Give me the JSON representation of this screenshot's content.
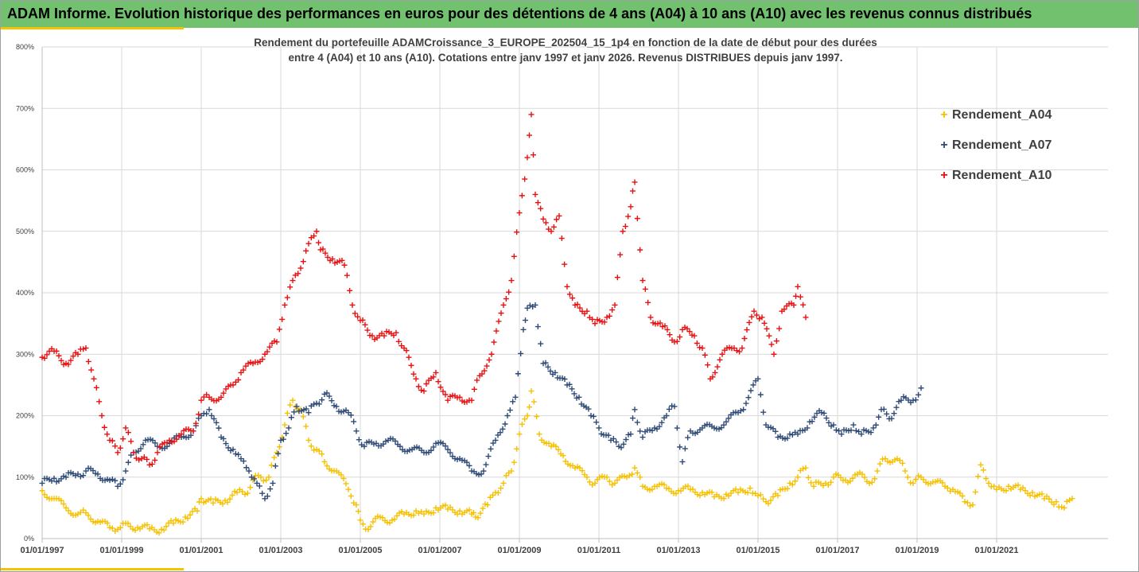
{
  "banner": {
    "title": "ADAM Informe. Evolution historique des performances en euros pour des détentions de 4 ans (A04) à 10 ans (A10) avec les revenus connus distribués"
  },
  "chart_data": {
    "type": "scatter",
    "title_line1": "Rendement du portefeuille ADAMCroissance_3_EUROPE_202504_15_1p4  en fonction de la date de début pour des durées",
    "title_line2": "entre 4 (A04) et 10 ans (A10). Cotations entre janv 1997 et janv 2026. Revenus DISTRIBUES depuis janv 1997.",
    "ylim": [
      0,
      800
    ],
    "xlim": [
      1997.0,
      2023.8
    ],
    "grid": true,
    "legend_position": "right",
    "y_ticks": [
      "0%",
      "100%",
      "200%",
      "300%",
      "400%",
      "500%",
      "600%",
      "700%",
      "800%"
    ],
    "x_ticks": [
      {
        "label": "01/01/1997",
        "year": 1997
      },
      {
        "label": "01/01/1999",
        "year": 1999
      },
      {
        "label": "01/01/2001",
        "year": 2001
      },
      {
        "label": "01/01/2003",
        "year": 2003
      },
      {
        "label": "01/01/2005",
        "year": 2005
      },
      {
        "label": "01/01/2007",
        "year": 2007
      },
      {
        "label": "01/01/2009",
        "year": 2009
      },
      {
        "label": "01/01/2011",
        "year": 2011
      },
      {
        "label": "01/01/2013",
        "year": 2013
      },
      {
        "label": "01/01/2015",
        "year": 2015
      },
      {
        "label": "01/01/2017",
        "year": 2017
      },
      {
        "label": "01/01/2019",
        "year": 2019
      },
      {
        "label": "01/01/2021",
        "year": 2021
      }
    ],
    "series": [
      {
        "name": "Rendement_A04",
        "color": "#f5c000",
        "points": [
          [
            1997.0,
            78
          ],
          [
            1997.3,
            65
          ],
          [
            1997.6,
            50
          ],
          [
            1997.9,
            40
          ],
          [
            1998.1,
            42
          ],
          [
            1998.4,
            28
          ],
          [
            1998.7,
            18
          ],
          [
            1998.9,
            15
          ],
          [
            1999.1,
            25
          ],
          [
            1999.4,
            18
          ],
          [
            1999.7,
            16
          ],
          [
            2000.0,
            15
          ],
          [
            2000.3,
            25
          ],
          [
            2000.6,
            35
          ],
          [
            2000.9,
            45
          ],
          [
            2001.0,
            65
          ],
          [
            2001.3,
            58
          ],
          [
            2001.6,
            62
          ],
          [
            2001.9,
            75
          ],
          [
            2002.1,
            72
          ],
          [
            2002.3,
            95
          ],
          [
            2002.5,
            100
          ],
          [
            2002.7,
            100
          ],
          [
            2002.9,
            140
          ],
          [
            2003.1,
            185
          ],
          [
            2003.3,
            225
          ],
          [
            2003.5,
            210
          ],
          [
            2003.7,
            160
          ],
          [
            2003.9,
            145
          ],
          [
            2004.1,
            125
          ],
          [
            2004.4,
            110
          ],
          [
            2004.7,
            80
          ],
          [
            2004.9,
            55
          ],
          [
            2005.0,
            30
          ],
          [
            2005.2,
            15
          ],
          [
            2005.5,
            35
          ],
          [
            2005.8,
            30
          ],
          [
            2006.1,
            40
          ],
          [
            2006.4,
            45
          ],
          [
            2006.6,
            40
          ],
          [
            2006.9,
            50
          ],
          [
            2007.2,
            48
          ],
          [
            2007.5,
            45
          ],
          [
            2007.8,
            40
          ],
          [
            2007.9,
            35
          ],
          [
            2008.2,
            55
          ],
          [
            2008.4,
            75
          ],
          [
            2008.6,
            90
          ],
          [
            2008.8,
            110
          ],
          [
            2009.0,
            170
          ],
          [
            2009.2,
            200
          ],
          [
            2009.3,
            240
          ],
          [
            2009.5,
            170
          ],
          [
            2009.8,
            150
          ],
          [
            2010.1,
            135
          ],
          [
            2010.4,
            115
          ],
          [
            2010.7,
            100
          ],
          [
            2010.9,
            90
          ],
          [
            2011.2,
            100
          ],
          [
            2011.4,
            90
          ],
          [
            2011.7,
            100
          ],
          [
            2011.9,
            115
          ],
          [
            2012.1,
            85
          ],
          [
            2012.4,
            85
          ],
          [
            2012.7,
            82
          ],
          [
            2013.0,
            78
          ],
          [
            2013.3,
            80
          ],
          [
            2013.6,
            75
          ],
          [
            2013.9,
            68
          ],
          [
            2014.2,
            72
          ],
          [
            2014.5,
            75
          ],
          [
            2014.8,
            82
          ],
          [
            2015.0,
            70
          ],
          [
            2015.2,
            60
          ],
          [
            2015.5,
            70
          ],
          [
            2015.8,
            90
          ],
          [
            2016.0,
            100
          ],
          [
            2016.2,
            115
          ],
          [
            2016.4,
            85
          ],
          [
            2016.7,
            90
          ],
          [
            2016.9,
            100
          ],
          [
            2017.2,
            95
          ],
          [
            2017.5,
            105
          ],
          [
            2017.8,
            90
          ],
          [
            2018.0,
            110
          ],
          [
            2018.2,
            130
          ],
          [
            2018.5,
            130
          ],
          [
            2018.7,
            110
          ],
          [
            2018.9,
            90
          ],
          [
            2019.1,
            100
          ],
          [
            2019.4,
            92
          ],
          [
            2019.7,
            85
          ],
          [
            2019.9,
            80
          ],
          [
            2020.2,
            60
          ],
          [
            2020.4,
            55
          ],
          [
            2020.6,
            120
          ],
          [
            2020.8,
            90
          ],
          [
            2021.0,
            80
          ],
          [
            2021.3,
            85
          ],
          [
            2021.6,
            80
          ],
          [
            2021.9,
            75
          ],
          [
            2022.2,
            65
          ],
          [
            2022.5,
            60
          ],
          [
            2022.7,
            50
          ],
          [
            2022.9,
            65
          ]
        ]
      },
      {
        "name": "Rendement_A07",
        "color": "#2e4a77",
        "points": [
          [
            1997.0,
            90
          ],
          [
            1997.3,
            98
          ],
          [
            1997.6,
            100
          ],
          [
            1997.9,
            105
          ],
          [
            1998.1,
            110
          ],
          [
            1998.4,
            105
          ],
          [
            1998.7,
            95
          ],
          [
            1998.9,
            85
          ],
          [
            1999.1,
            110
          ],
          [
            1999.3,
            140
          ],
          [
            1999.6,
            160
          ],
          [
            1999.9,
            150
          ],
          [
            2000.2,
            155
          ],
          [
            2000.5,
            165
          ],
          [
            2000.8,
            175
          ],
          [
            2001.0,
            200
          ],
          [
            2001.2,
            210
          ],
          [
            2001.5,
            165
          ],
          [
            2001.8,
            145
          ],
          [
            2002.0,
            130
          ],
          [
            2002.2,
            110
          ],
          [
            2002.4,
            90
          ],
          [
            2002.6,
            65
          ],
          [
            2002.8,
            90
          ],
          [
            2003.0,
            160
          ],
          [
            2003.2,
            180
          ],
          [
            2003.4,
            215
          ],
          [
            2003.7,
            205
          ],
          [
            2003.9,
            220
          ],
          [
            2004.1,
            235
          ],
          [
            2004.4,
            215
          ],
          [
            2004.7,
            205
          ],
          [
            2004.9,
            175
          ],
          [
            2005.1,
            150
          ],
          [
            2005.4,
            155
          ],
          [
            2005.7,
            160
          ],
          [
            2006.0,
            150
          ],
          [
            2006.3,
            145
          ],
          [
            2006.6,
            140
          ],
          [
            2006.9,
            155
          ],
          [
            2007.2,
            145
          ],
          [
            2007.5,
            130
          ],
          [
            2007.8,
            110
          ],
          [
            2008.1,
            110
          ],
          [
            2008.4,
            160
          ],
          [
            2008.7,
            200
          ],
          [
            2008.9,
            230
          ],
          [
            2009.1,
            340
          ],
          [
            2009.2,
            375
          ],
          [
            2009.4,
            380
          ],
          [
            2009.6,
            285
          ],
          [
            2009.9,
            270
          ],
          [
            2010.2,
            250
          ],
          [
            2010.5,
            230
          ],
          [
            2010.8,
            200
          ],
          [
            2011.0,
            180
          ],
          [
            2011.3,
            160
          ],
          [
            2011.5,
            150
          ],
          [
            2011.8,
            170
          ],
          [
            2011.9,
            210
          ],
          [
            2012.1,
            165
          ],
          [
            2012.4,
            180
          ],
          [
            2012.7,
            200
          ],
          [
            2012.9,
            215
          ],
          [
            2013.1,
            125
          ],
          [
            2013.3,
            175
          ],
          [
            2013.6,
            180
          ],
          [
            2013.9,
            180
          ],
          [
            2014.2,
            190
          ],
          [
            2014.5,
            205
          ],
          [
            2014.7,
            220
          ],
          [
            2015.0,
            260
          ],
          [
            2015.2,
            185
          ],
          [
            2015.5,
            165
          ],
          [
            2015.8,
            170
          ],
          [
            2016.0,
            170
          ],
          [
            2016.3,
            190
          ],
          [
            2016.6,
            205
          ],
          [
            2016.9,
            185
          ],
          [
            2017.1,
            170
          ],
          [
            2017.4,
            185
          ],
          [
            2017.6,
            170
          ],
          [
            2017.9,
            180
          ],
          [
            2018.1,
            210
          ],
          [
            2018.3,
            195
          ],
          [
            2018.6,
            225
          ],
          [
            2018.9,
            225
          ],
          [
            2019.1,
            245
          ]
        ]
      },
      {
        "name": "Rendement_A10",
        "color": "#e81010",
        "points": [
          [
            1997.0,
            295
          ],
          [
            1997.3,
            305
          ],
          [
            1997.6,
            285
          ],
          [
            1997.9,
            300
          ],
          [
            1998.1,
            310
          ],
          [
            1998.3,
            260
          ],
          [
            1998.5,
            200
          ],
          [
            1998.7,
            160
          ],
          [
            1998.9,
            140
          ],
          [
            1999.1,
            180
          ],
          [
            1999.3,
            140
          ],
          [
            1999.5,
            130
          ],
          [
            1999.7,
            120
          ],
          [
            1999.9,
            140
          ],
          [
            2000.2,
            160
          ],
          [
            2000.5,
            170
          ],
          [
            2000.8,
            175
          ],
          [
            2001.0,
            225
          ],
          [
            2001.2,
            230
          ],
          [
            2001.5,
            230
          ],
          [
            2001.8,
            250
          ],
          [
            2002.0,
            270
          ],
          [
            2002.3,
            285
          ],
          [
            2002.6,
            300
          ],
          [
            2002.9,
            320
          ],
          [
            2003.1,
            380
          ],
          [
            2003.3,
            420
          ],
          [
            2003.5,
            440
          ],
          [
            2003.7,
            480
          ],
          [
            2003.9,
            500
          ],
          [
            2004.0,
            470
          ],
          [
            2004.3,
            455
          ],
          [
            2004.6,
            445
          ],
          [
            2004.8,
            380
          ],
          [
            2005.0,
            355
          ],
          [
            2005.3,
            330
          ],
          [
            2005.6,
            330
          ],
          [
            2005.9,
            335
          ],
          [
            2006.1,
            310
          ],
          [
            2006.4,
            260
          ],
          [
            2006.6,
            240
          ],
          [
            2006.9,
            270
          ],
          [
            2007.2,
            225
          ],
          [
            2007.5,
            230
          ],
          [
            2007.8,
            225
          ],
          [
            2008.0,
            265
          ],
          [
            2008.3,
            300
          ],
          [
            2008.6,
            380
          ],
          [
            2008.8,
            420
          ],
          [
            2009.0,
            530
          ],
          [
            2009.2,
            620
          ],
          [
            2009.3,
            690
          ],
          [
            2009.4,
            560
          ],
          [
            2009.6,
            520
          ],
          [
            2009.8,
            500
          ],
          [
            2010.0,
            525
          ],
          [
            2010.2,
            410
          ],
          [
            2010.4,
            380
          ],
          [
            2010.7,
            370
          ],
          [
            2010.9,
            350
          ],
          [
            2011.2,
            360
          ],
          [
            2011.4,
            380
          ],
          [
            2011.6,
            500
          ],
          [
            2011.8,
            540
          ],
          [
            2011.9,
            580
          ],
          [
            2012.1,
            420
          ],
          [
            2012.3,
            360
          ],
          [
            2012.6,
            345
          ],
          [
            2012.9,
            320
          ],
          [
            2013.1,
            340
          ],
          [
            2013.4,
            330
          ],
          [
            2013.6,
            310
          ],
          [
            2013.8,
            260
          ],
          [
            2014.1,
            300
          ],
          [
            2014.4,
            310
          ],
          [
            2014.6,
            310
          ],
          [
            2014.9,
            370
          ],
          [
            2015.1,
            360
          ],
          [
            2015.4,
            300
          ],
          [
            2015.6,
            370
          ],
          [
            2015.9,
            380
          ],
          [
            2016.0,
            410
          ],
          [
            2016.2,
            360
          ]
        ]
      }
    ]
  }
}
